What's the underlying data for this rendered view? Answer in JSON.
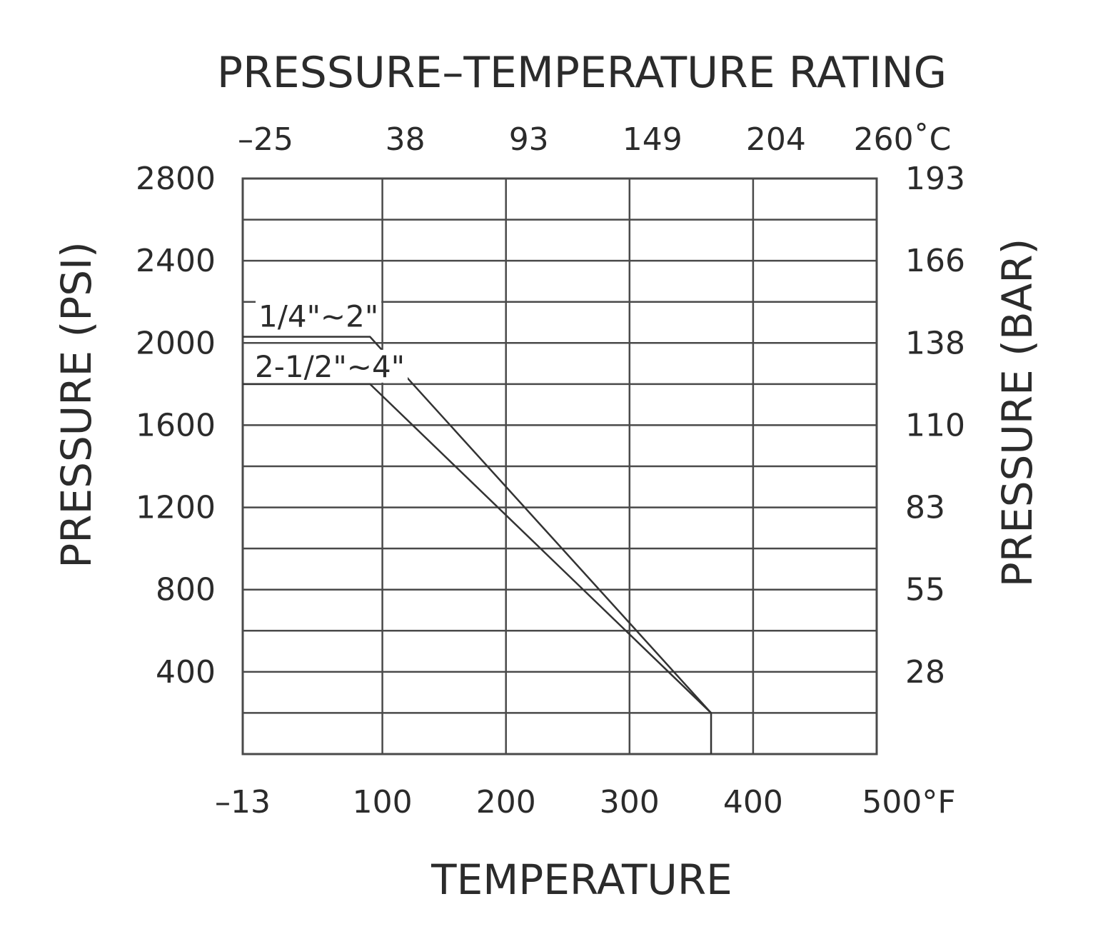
{
  "chart_data": {
    "type": "line",
    "title": "PRESSURE–TEMPERATURE RATING",
    "xlabel": "TEMPERATURE",
    "ylabel": "PRESSURE (PSI)",
    "ylabel_right": "PRESSURE (BAR)",
    "x_unit": "°F",
    "x_unit_top": "˚C",
    "x_ticks": [
      "–13",
      "100",
      "200",
      "300",
      "400",
      "500"
    ],
    "x_ticks_top": [
      "–25",
      "38",
      "93",
      "149",
      "204",
      "260"
    ],
    "y_ticks": [
      "2800",
      "2400",
      "2000",
      "1600",
      "1200",
      "800",
      "400"
    ],
    "y_ticks_right": [
      "193",
      "166",
      "138",
      "110",
      "83",
      "55",
      "28"
    ],
    "grid": true,
    "xlim": [
      -13,
      500
    ],
    "ylim": [
      0,
      2800
    ],
    "series": [
      {
        "name": "1/4\"~2\"",
        "x": [
          -13,
          90,
          366
        ],
        "y": [
          2030,
          2030,
          200
        ]
      },
      {
        "name": "2-1/2\"~4\"",
        "x": [
          -13,
          90,
          366
        ],
        "y": [
          1800,
          1800,
          200
        ]
      },
      {
        "name": "",
        "x": [
          366,
          366
        ],
        "y": [
          200,
          0
        ]
      }
    ],
    "colors": {
      "grid": "#4a4a4a",
      "series": "#333333",
      "text": "#2b2b2b"
    }
  }
}
